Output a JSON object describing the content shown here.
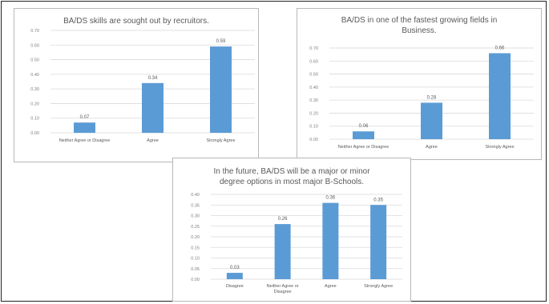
{
  "chart_data": [
    {
      "type": "bar",
      "title": "BA/DS skills are sought out by recruitors.",
      "categories": [
        "Neither Agree or Disagree",
        "Agree",
        "Strongly Agree"
      ],
      "values": [
        0.07,
        0.34,
        0.59
      ],
      "data_labels": [
        "0.07",
        "0.34",
        "0.59"
      ],
      "ylim": [
        0,
        0.7
      ],
      "yticks": [
        "0.00",
        "0.10",
        "0.20",
        "0.30",
        "0.40",
        "0.50",
        "0.60",
        "0.70"
      ],
      "grid": true,
      "color": "#5b9bd5",
      "xlabel": "",
      "ylabel": ""
    },
    {
      "type": "bar",
      "title": "BA/DS in one of the fastest growing fields in Business.",
      "categories": [
        "Neither Agree or Disagree",
        "Agree",
        "Strongly Agree"
      ],
      "values": [
        0.06,
        0.28,
        0.66
      ],
      "data_labels": [
        "0.06",
        "0.28",
        "0.66"
      ],
      "ylim": [
        0,
        0.7
      ],
      "yticks": [
        "0.00",
        "0.10",
        "0.20",
        "0.30",
        "0.40",
        "0.50",
        "0.60",
        "0.70"
      ],
      "grid": true,
      "color": "#5b9bd5",
      "xlabel": "",
      "ylabel": ""
    },
    {
      "type": "bar",
      "title": "In the future, BA/DS will be a major or minor degree options in most major B-Schools.",
      "categories": [
        "Disagree",
        "Neither Agree or Disagree",
        "Agree",
        "Strongly Agree"
      ],
      "values": [
        0.03,
        0.26,
        0.36,
        0.35
      ],
      "data_labels": [
        "0.03",
        "0.26",
        "0.36",
        "0.35"
      ],
      "ylim": [
        0,
        0.4
      ],
      "yticks": [
        "0.00",
        "0.05",
        "0.10",
        "0.15",
        "0.20",
        "0.25",
        "0.30",
        "0.35",
        "0.40"
      ],
      "grid": true,
      "color": "#5b9bd5",
      "xlabel": "",
      "ylabel": ""
    }
  ]
}
